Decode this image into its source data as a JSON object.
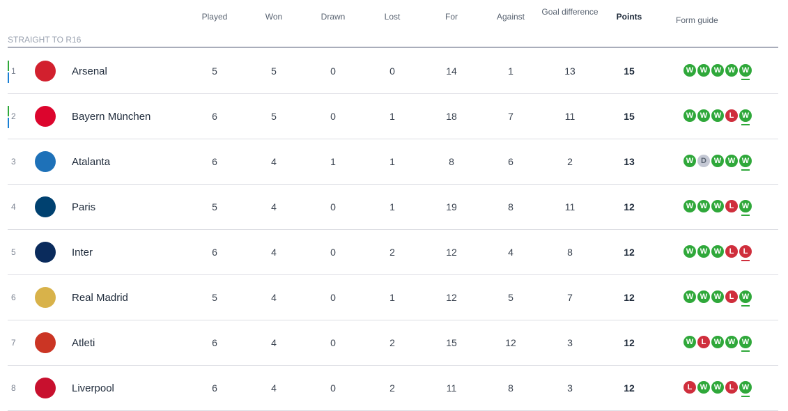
{
  "headers": {
    "played": "Played",
    "won": "Won",
    "drawn": "Drawn",
    "lost": "Lost",
    "for": "For",
    "against": "Against",
    "gd": "Goal difference",
    "points": "Points",
    "form": "Form guide"
  },
  "section": "STRAIGHT TO R16",
  "colors": {
    "win": "#2fa83a",
    "loss": "#cf2e3c",
    "draw": "#c4c8d4",
    "qual_green": "#2fa83a",
    "qual_blue": "#1a7fd4"
  },
  "rows": [
    {
      "pos": "1",
      "team": "Arsenal",
      "logo": "arsenal-crest",
      "logo_color": "#d2202e",
      "marker": true,
      "played": "5",
      "won": "5",
      "drawn": "0",
      "lost": "0",
      "for": "14",
      "against": "1",
      "gd": "13",
      "points": "15",
      "form": [
        "W",
        "W",
        "W",
        "W",
        "W"
      ]
    },
    {
      "pos": "2",
      "team": "Bayern München",
      "logo": "bayern-crest",
      "logo_color": "#dc052d",
      "marker": true,
      "played": "6",
      "won": "5",
      "drawn": "0",
      "lost": "1",
      "for": "18",
      "against": "7",
      "gd": "11",
      "points": "15",
      "form": [
        "W",
        "W",
        "W",
        "L",
        "W"
      ]
    },
    {
      "pos": "3",
      "team": "Atalanta",
      "logo": "atalanta-crest",
      "logo_color": "#1e71b8",
      "marker": false,
      "played": "6",
      "won": "4",
      "drawn": "1",
      "lost": "1",
      "for": "8",
      "against": "6",
      "gd": "2",
      "points": "13",
      "form": [
        "W",
        "D",
        "W",
        "W",
        "W"
      ]
    },
    {
      "pos": "4",
      "team": "Paris",
      "logo": "psg-crest",
      "logo_color": "#004170",
      "marker": false,
      "played": "5",
      "won": "4",
      "drawn": "0",
      "lost": "1",
      "for": "19",
      "against": "8",
      "gd": "11",
      "points": "12",
      "form": [
        "W",
        "W",
        "W",
        "L",
        "W"
      ]
    },
    {
      "pos": "5",
      "team": "Inter",
      "logo": "inter-crest",
      "logo_color": "#0a2b5c",
      "marker": false,
      "played": "6",
      "won": "4",
      "drawn": "0",
      "lost": "2",
      "for": "12",
      "against": "4",
      "gd": "8",
      "points": "12",
      "form": [
        "W",
        "W",
        "W",
        "L",
        "L"
      ]
    },
    {
      "pos": "6",
      "team": "Real Madrid",
      "logo": "real-madrid-crest",
      "logo_color": "#d8b24a",
      "marker": false,
      "played": "5",
      "won": "4",
      "drawn": "0",
      "lost": "1",
      "for": "12",
      "against": "5",
      "gd": "7",
      "points": "12",
      "form": [
        "W",
        "W",
        "W",
        "L",
        "W"
      ]
    },
    {
      "pos": "7",
      "team": "Atleti",
      "logo": "atletico-crest",
      "logo_color": "#cb3524",
      "marker": false,
      "played": "6",
      "won": "4",
      "drawn": "0",
      "lost": "2",
      "for": "15",
      "against": "12",
      "gd": "3",
      "points": "12",
      "form": [
        "W",
        "L",
        "W",
        "W",
        "W"
      ]
    },
    {
      "pos": "8",
      "team": "Liverpool",
      "logo": "liverpool-crest",
      "logo_color": "#c8102e",
      "marker": false,
      "played": "6",
      "won": "4",
      "drawn": "0",
      "lost": "2",
      "for": "11",
      "against": "8",
      "gd": "3",
      "points": "12",
      "form": [
        "L",
        "W",
        "W",
        "L",
        "W"
      ]
    }
  ]
}
